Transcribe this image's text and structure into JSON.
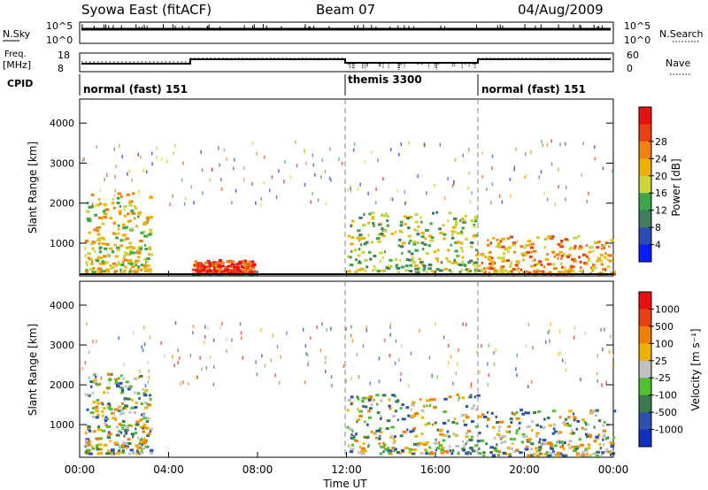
{
  "header": {
    "title": "Syowa East (fitACF)",
    "beam": "Beam 07",
    "date": "04/Aug/2009"
  },
  "status_panels": {
    "nsky_label": "N.Sky",
    "nsky_ticks": [
      "10^5",
      "10^0"
    ],
    "nsearch_label": "N.Search",
    "nsearch_ticks": [
      "10^5",
      "10^0"
    ],
    "freq_label": "Freq.",
    "freq_unit": "[MHz]",
    "freq_ticks": [
      "18",
      "8"
    ],
    "nave_label": "Nave",
    "nave_ticks": [
      "60",
      "0"
    ],
    "cpid_label": "CPID",
    "cpid_segments": [
      {
        "label": "normal (fast) 151",
        "start": 0,
        "end": 12
      },
      {
        "label": "themis 3300",
        "start": 12,
        "end": 18
      },
      {
        "label": "normal (fast) 151",
        "start": 18,
        "end": 24
      }
    ]
  },
  "chart_data": [
    {
      "type": "heatmap",
      "name": "power",
      "ylabel": "Slant Range [km]",
      "ylim": [
        180,
        4600
      ],
      "yticks": [
        1000,
        2000,
        3000,
        4000
      ],
      "xlim": [
        0,
        24
      ],
      "xticks": [
        "00:00",
        "04:00",
        "08:00",
        "12:00",
        "16:00",
        "20:00",
        "00:00"
      ],
      "colorbar": {
        "label": "Power [dB]",
        "ticks": [
          "4",
          "8",
          "12",
          "16",
          "20",
          "24",
          "28"
        ],
        "colors": [
          "#0a1cff",
          "#2a4db4",
          "#3f7d5f",
          "#3ca64a",
          "#c8d63c",
          "#f0b000",
          "#f08010",
          "#e84010",
          "#e81010"
        ]
      },
      "features": [
        {
          "t": [
            0.2,
            3.2
          ],
          "range": [
            300,
            2300
          ],
          "level": 5
        },
        {
          "t": [
            5.0,
            7.8
          ],
          "range": [
            250,
            600
          ],
          "level": 8
        },
        {
          "t": [
            12.0,
            18.0
          ],
          "range": [
            300,
            1800
          ],
          "level": 4
        },
        {
          "t": [
            18.0,
            24.0
          ],
          "range": [
            250,
            1200
          ],
          "level": 6
        }
      ]
    },
    {
      "type": "heatmap",
      "name": "velocity",
      "ylabel": "Slant Range [km]",
      "ylim": [
        180,
        4600
      ],
      "yticks": [
        1000,
        2000,
        3000,
        4000
      ],
      "xlim": [
        0,
        24
      ],
      "xlabel": "Time UT",
      "xticks": [
        "00:00",
        "04:00",
        "08:00",
        "12:00",
        "16:00",
        "20:00",
        "00:00"
      ],
      "colorbar": {
        "label": "Velocity [m s⁻¹]",
        "ticks": [
          "1000",
          "500",
          "100",
          "25",
          "-25",
          "-100",
          "-500",
          "-1000"
        ],
        "colors": [
          "#1030c0",
          "#3050b0",
          "#3a7a50",
          "#50c030",
          "#c0c0c0",
          "#f0b000",
          "#f08000",
          "#e84010",
          "#e81010"
        ]
      },
      "features": [
        {
          "t": [
            0.2,
            3.2
          ],
          "range": [
            300,
            2300
          ],
          "velocity": -100
        },
        {
          "t": [
            12.0,
            18.0
          ],
          "range": [
            300,
            1800
          ],
          "velocity": 100
        },
        {
          "t": [
            18.0,
            24.0
          ],
          "range": [
            250,
            1400
          ],
          "velocity": 25
        }
      ]
    }
  ]
}
